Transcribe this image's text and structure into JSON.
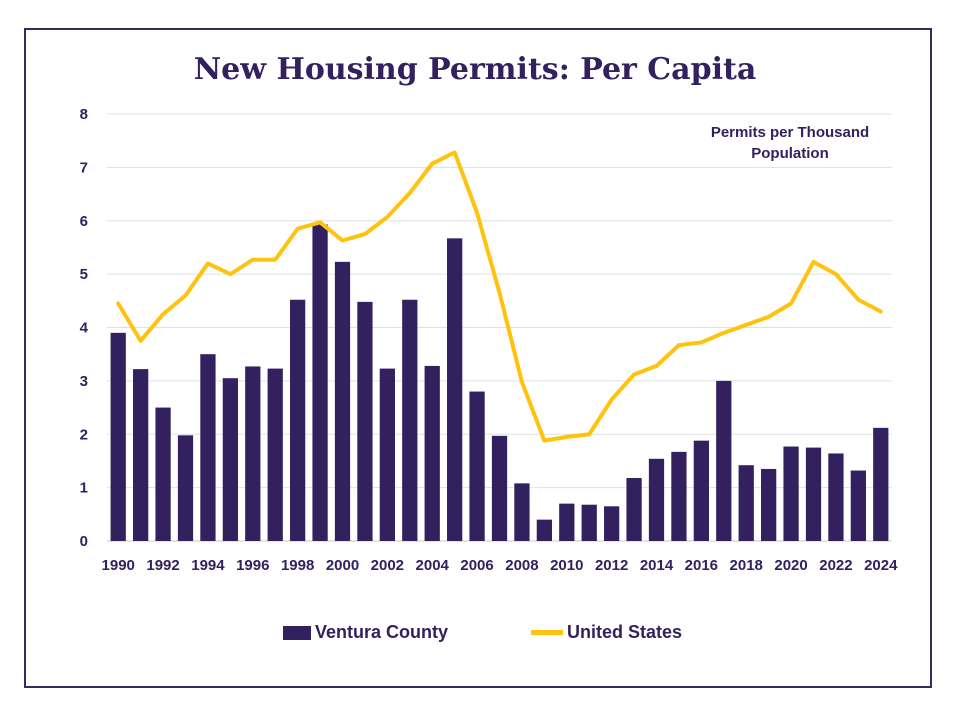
{
  "chart_data": {
    "type": "bar",
    "title": "New Housing Permits: Per Capita",
    "annotation": "Permits per Thousand Population",
    "ylim": [
      0,
      8
    ],
    "yticks": [
      0,
      1,
      2,
      3,
      4,
      5,
      6,
      7,
      8
    ],
    "grid": true,
    "legend_position": "bottom",
    "categories": [
      1990,
      1991,
      1992,
      1993,
      1994,
      1995,
      1996,
      1997,
      1998,
      1999,
      2000,
      2001,
      2002,
      2003,
      2004,
      2005,
      2006,
      2007,
      2008,
      2009,
      2010,
      2011,
      2012,
      2013,
      2014,
      2015,
      2016,
      2017,
      2018,
      2019,
      2020,
      2021,
      2022,
      2023,
      2024
    ],
    "xtick_labels": [
      "1990",
      "1992",
      "1994",
      "1996",
      "1998",
      "2000",
      "2002",
      "2004",
      "2006",
      "2008",
      "2010",
      "2012",
      "2014",
      "2016",
      "2018",
      "2020",
      "2022",
      "2024"
    ],
    "series": [
      {
        "name": "Ventura County",
        "kind": "bar",
        "color": "#33205e",
        "values": [
          3.9,
          3.22,
          2.5,
          1.98,
          3.5,
          3.05,
          3.27,
          3.23,
          4.52,
          5.93,
          5.23,
          4.48,
          3.23,
          4.52,
          3.28,
          5.67,
          2.8,
          1.97,
          1.08,
          0.4,
          0.7,
          0.68,
          0.65,
          1.18,
          1.54,
          1.67,
          1.88,
          3.0,
          1.42,
          1.35,
          1.77,
          1.75,
          1.64,
          1.32,
          2.12
        ]
      },
      {
        "name": "United States",
        "kind": "line",
        "color": "#ffc20e",
        "values": [
          4.45,
          3.75,
          4.25,
          4.6,
          5.2,
          5.0,
          5.27,
          5.27,
          5.85,
          5.97,
          5.63,
          5.75,
          6.07,
          6.52,
          7.07,
          7.28,
          6.15,
          4.65,
          2.98,
          1.88,
          1.95,
          2.0,
          2.65,
          3.12,
          3.28,
          3.67,
          3.72,
          3.9,
          4.05,
          4.2,
          4.45,
          5.23,
          5.0,
          4.52,
          4.3
        ]
      }
    ]
  }
}
